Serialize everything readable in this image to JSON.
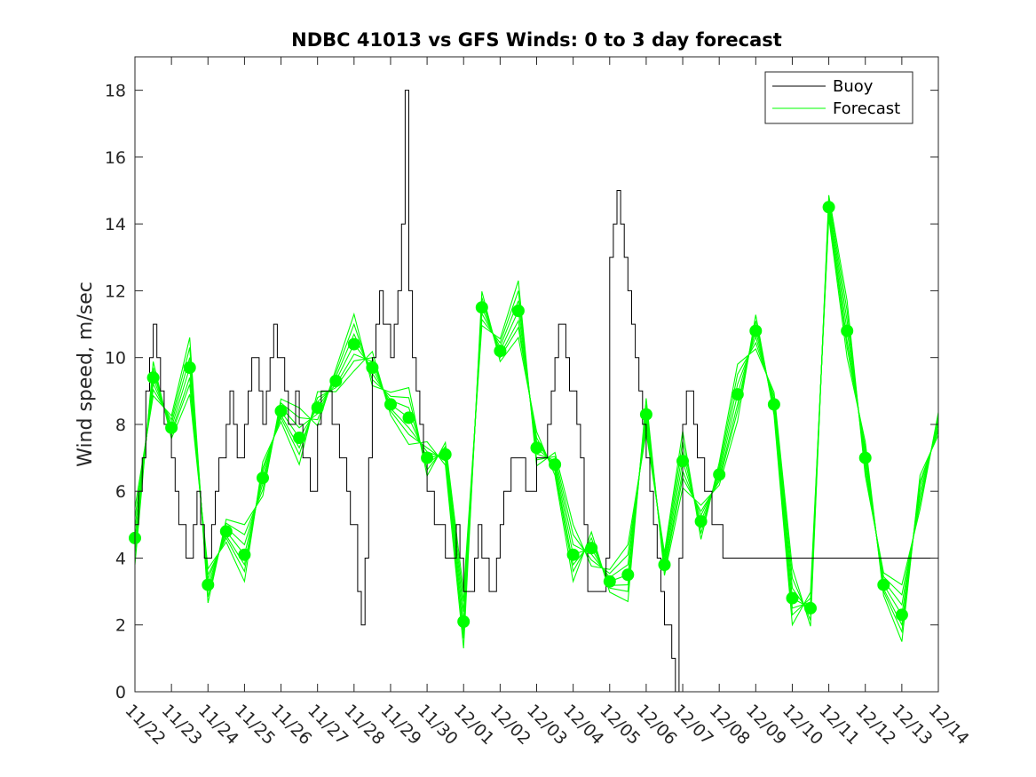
{
  "chart_data": {
    "type": "line",
    "title": "NDBC 41013 vs GFS Winds: 0 to 3 day forecast",
    "xlabel": "",
    "ylabel": "Wind speed, m/sec",
    "xlim": [
      0,
      22
    ],
    "ylim": [
      0,
      19
    ],
    "yticks": [
      0,
      2,
      4,
      6,
      8,
      10,
      12,
      14,
      16,
      18
    ],
    "categories": [
      "11/22",
      "11/23",
      "11/24",
      "11/25",
      "11/26",
      "11/27",
      "11/28",
      "11/29",
      "11/30",
      "12/01",
      "12/02",
      "12/03",
      "12/04",
      "12/05",
      "12/06",
      "12/07",
      "12/08",
      "12/09",
      "12/10",
      "12/11",
      "12/12",
      "12/13",
      "12/14"
    ],
    "legend": {
      "position": "top-right",
      "entries": [
        "Buoy",
        "Forecast"
      ]
    },
    "colors": {
      "buoy": "#000000",
      "forecast": "#00ff00",
      "axis": "#262626"
    },
    "series": [
      {
        "name": "Buoy",
        "x": [
          0,
          0.1,
          0.2,
          0.3,
          0.4,
          0.5,
          0.6,
          0.7,
          0.8,
          0.9,
          1.0,
          1.1,
          1.2,
          1.3,
          1.4,
          1.5,
          1.6,
          1.7,
          1.8,
          1.9,
          2.0,
          2.1,
          2.2,
          2.3,
          2.4,
          2.5,
          2.6,
          2.7,
          2.8,
          2.9,
          3.0,
          3.1,
          3.2,
          3.3,
          3.4,
          3.5,
          3.6,
          3.7,
          3.8,
          3.9,
          4.0,
          4.1,
          4.2,
          4.3,
          4.4,
          4.5,
          4.6,
          4.7,
          4.8,
          4.9,
          5.0,
          5.1,
          5.2,
          5.3,
          5.4,
          5.5,
          5.6,
          5.7,
          5.8,
          5.9,
          6.0,
          6.1,
          6.2,
          6.3,
          6.4,
          6.5,
          6.6,
          6.7,
          6.8,
          6.9,
          7.0,
          7.1,
          7.2,
          7.3,
          7.4,
          7.5,
          7.6,
          7.7,
          7.8,
          7.9,
          8.0,
          8.1,
          8.2,
          8.3,
          8.4,
          8.5,
          8.6,
          8.7,
          8.8,
          8.9,
          9.0,
          9.1,
          9.2,
          9.3,
          9.4,
          9.5,
          9.6,
          9.7,
          9.8,
          9.9,
          10.0,
          10.1,
          10.2,
          10.3,
          10.4,
          10.5,
          10.6,
          10.7,
          10.8,
          10.9,
          11.0,
          11.1,
          11.2,
          11.3,
          11.4,
          11.5,
          11.6,
          11.7,
          11.8,
          11.9,
          12.0,
          12.1,
          12.2,
          12.3,
          12.4,
          12.5,
          12.6,
          12.7,
          12.8,
          12.9,
          13.0,
          13.1,
          13.2,
          13.3,
          13.4,
          13.5,
          13.6,
          13.7,
          13.8,
          13.9,
          14.0,
          14.1,
          14.2,
          14.3,
          14.4,
          14.5,
          14.6,
          14.7,
          14.8,
          14.9,
          15.0,
          15.1,
          15.2,
          15.3,
          15.4,
          15.5,
          15.6,
          15.7,
          15.8,
          15.9,
          16.0,
          16.1,
          16.2,
          16.3,
          16.4,
          16.5,
          16.6,
          16.7,
          16.8,
          16.9,
          17.0,
          17.1,
          17.2,
          17.3,
          17.4,
          17.5,
          17.6,
          17.7,
          17.8,
          17.9,
          18.0,
          18.1,
          18.2,
          18.3,
          18.4,
          18.5,
          18.6,
          18.7,
          18.8,
          18.9,
          19.0,
          19.1,
          19.2,
          19.3,
          19.4,
          19.5,
          19.6,
          19.7,
          19.8,
          19.9,
          20.0,
          20.1,
          20.2,
          20.3,
          20.4,
          20.5,
          20.6,
          20.7,
          20.8,
          20.9,
          21.0,
          21.1,
          21.2,
          21.3,
          21.4,
          21.5,
          21.6,
          21.7,
          21.8,
          21.9
        ],
        "values": [
          5,
          6,
          7,
          9,
          10,
          11,
          10,
          9,
          8,
          8,
          7,
          6,
          5,
          5,
          4,
          4,
          5,
          6,
          5,
          4,
          4,
          5,
          6,
          7,
          7,
          8,
          9,
          8,
          7,
          7,
          8,
          9,
          10,
          10,
          9,
          8,
          9,
          10,
          11,
          10,
          10,
          9,
          8,
          8,
          9,
          8,
          7,
          7,
          6,
          6,
          8,
          9,
          9,
          9,
          8,
          8,
          7,
          7,
          6,
          5,
          5,
          3,
          2,
          4,
          7,
          10,
          11,
          12,
          11,
          11,
          10,
          11,
          12,
          14,
          18,
          12,
          10,
          9,
          8,
          7,
          6,
          6,
          5,
          5,
          5,
          4,
          4,
          4,
          5,
          4,
          3,
          3,
          3,
          4,
          5,
          4,
          4,
          3,
          3,
          4,
          5,
          6,
          6,
          7,
          7,
          7,
          7,
          6,
          6,
          6,
          7,
          7,
          7,
          8,
          9,
          10,
          11,
          11,
          10,
          9,
          9,
          8,
          7,
          5,
          3,
          3,
          3,
          3,
          3,
          4,
          13,
          14,
          15,
          14,
          13,
          12,
          11,
          10,
          9,
          8,
          7,
          6,
          5,
          4,
          3,
          2,
          2,
          1,
          0,
          4,
          8,
          9,
          9,
          8,
          7,
          7,
          6,
          6,
          5,
          5,
          5,
          4,
          4,
          4,
          4,
          4,
          4,
          4,
          4,
          4,
          4,
          4,
          4,
          4,
          4,
          4,
          4,
          4,
          4,
          4,
          4,
          4,
          4,
          4,
          4,
          4,
          4,
          4,
          4,
          4,
          4,
          4,
          4,
          4,
          4,
          4,
          4,
          4,
          4,
          4,
          4,
          4,
          4,
          4,
          4,
          4,
          4,
          4,
          4,
          4,
          4,
          4,
          4,
          4,
          4,
          4,
          4,
          4,
          4,
          4
        ]
      },
      {
        "name": "Forecast",
        "x": [
          0,
          0.5,
          1,
          1.5,
          2,
          2.5,
          3,
          3.5,
          4,
          4.5,
          5,
          5.5,
          6,
          6.5,
          7,
          7.5,
          8,
          8.5,
          9,
          9.5,
          10,
          10.5,
          11,
          11.5,
          12,
          12.5,
          13,
          13.5,
          14,
          14.5,
          15,
          15.5,
          16,
          16.5,
          17,
          17.5,
          18,
          18.5,
          19,
          19.5,
          20,
          20.5,
          21,
          21.5,
          22
        ],
        "values": [
          4.6,
          9.4,
          7.9,
          9.7,
          3.2,
          4.8,
          4.1,
          6.4,
          8.4,
          7.6,
          8.5,
          9.3,
          10.4,
          9.7,
          8.6,
          8.2,
          7.0,
          7.1,
          2.1,
          11.5,
          10.2,
          11.4,
          7.3,
          6.8,
          4.1,
          4.3,
          3.3,
          3.5,
          8.3,
          3.8,
          6.9,
          5.1,
          6.5,
          8.9,
          10.8,
          8.6,
          2.8,
          2.5,
          14.5,
          10.8,
          7.0,
          3.2,
          2.3,
          6.0,
          8.0
        ]
      }
    ],
    "forecast_markers": {
      "x": [
        0,
        0.5,
        1,
        1.5,
        2,
        2.5,
        3,
        3.5,
        4,
        4.5,
        5,
        5.5,
        6,
        6.5,
        7,
        7.5,
        8,
        8.5,
        9,
        9.5,
        10,
        10.5,
        11,
        11.5,
        12,
        12.5,
        13,
        13.5,
        14,
        14.5,
        15,
        15.5,
        16,
        16.5,
        17,
        17.5,
        18,
        18.5,
        19,
        19.5,
        20,
        20.5,
        21
      ],
      "values": [
        4.6,
        9.4,
        7.9,
        9.7,
        3.2,
        4.8,
        4.1,
        6.4,
        8.4,
        7.6,
        8.5,
        9.3,
        10.4,
        9.7,
        8.6,
        8.2,
        7.0,
        7.1,
        2.1,
        11.5,
        10.2,
        11.4,
        7.3,
        6.8,
        4.1,
        4.3,
        3.3,
        3.5,
        8.3,
        3.8,
        6.9,
        5.1,
        6.5,
        8.9,
        10.8,
        8.6,
        2.8,
        2.5,
        14.5,
        10.8,
        7.0,
        3.2,
        2.3
      ]
    }
  }
}
